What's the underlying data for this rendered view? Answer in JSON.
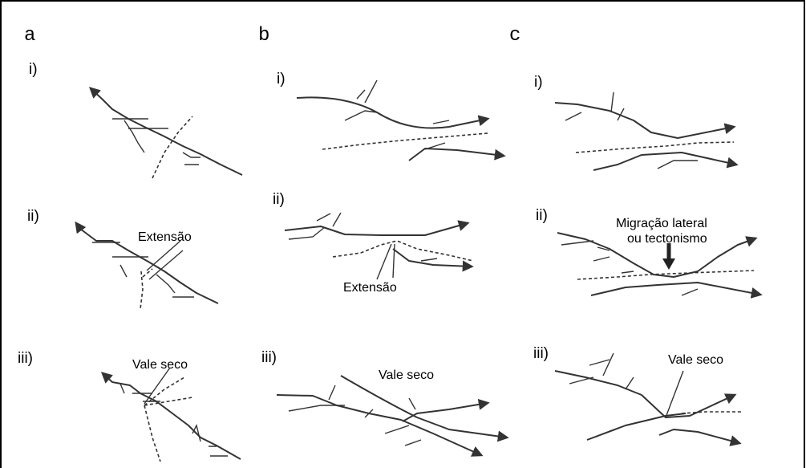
{
  "panels": [
    {
      "label": "a",
      "rows": [
        {
          "label": "i)"
        },
        {
          "label": "ii)",
          "annotation": "Extensão"
        },
        {
          "label": "iii)",
          "annotation": "Vale seco"
        }
      ]
    },
    {
      "label": "b",
      "rows": [
        {
          "label": "i)"
        },
        {
          "label": "ii)",
          "annotation": "Extensão"
        },
        {
          "label": "iii)",
          "annotation": "Vale seco"
        }
      ]
    },
    {
      "label": "c",
      "rows": [
        {
          "label": "i)"
        },
        {
          "label": "ii)",
          "annotation": [
            "Migração lateral",
            "ou tectonismo"
          ]
        },
        {
          "label": "iii)",
          "annotation": "Vale seco"
        }
      ]
    }
  ]
}
